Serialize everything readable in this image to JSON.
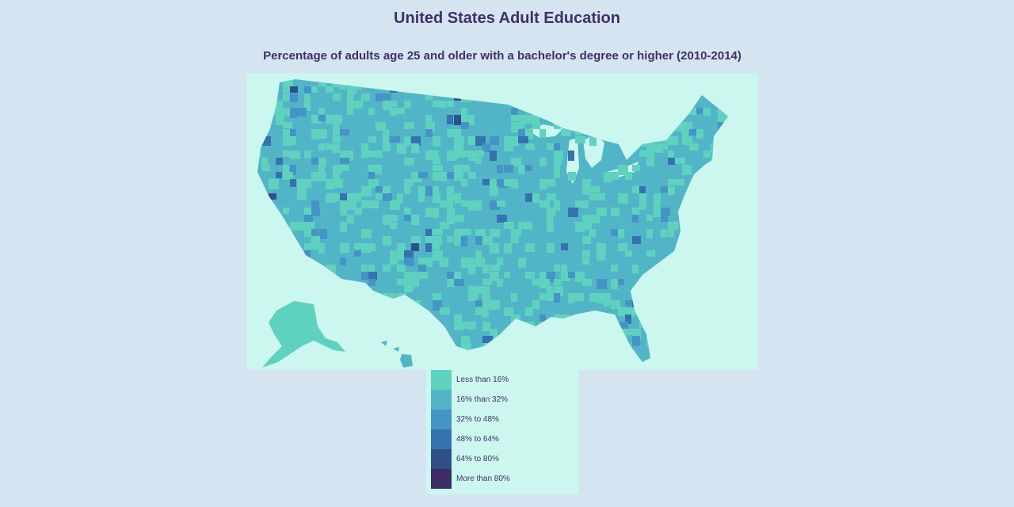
{
  "title": "United States Adult Education",
  "subtitle": "Percentage of adults age 25 and older with a bachelor's degree or higher (2010-2014)",
  "legend": {
    "items": [
      {
        "label": "Less than 16%",
        "color": "#5fd2bf"
      },
      {
        "label": "16% than 32%",
        "color": "#52b5c7"
      },
      {
        "label": "32% to 48%",
        "color": "#4594c6"
      },
      {
        "label": "48% to 64%",
        "color": "#3672b0"
      },
      {
        "label": "64% to 80%",
        "color": "#2f4f88"
      },
      {
        "label": "More than 80%",
        "color": "#3d2c66"
      }
    ]
  },
  "map": {
    "background": "#ccf7ee",
    "outline_color": "#52b5c7"
  }
}
